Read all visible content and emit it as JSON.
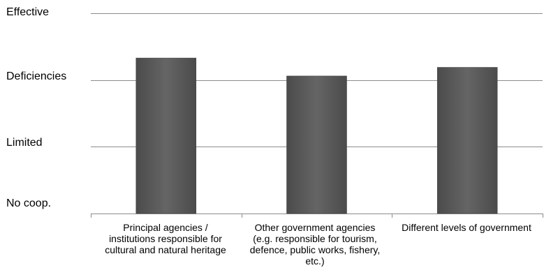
{
  "chart_data": {
    "type": "bar",
    "title": "",
    "xlabel": "",
    "ylabel": "",
    "y_tick_labels": [
      "No coop.",
      "Limited",
      "Deficiencies",
      "Effective"
    ],
    "ylim": [
      0,
      3
    ],
    "grid": true,
    "legend": "none",
    "categories": [
      [
        "Principal agencies /",
        "institutions responsible for",
        "cultural and natural heritage"
      ],
      [
        "Other government agencies",
        "(e.g. responsible for tourism,",
        "defence, public works, fishery,",
        "etc.)"
      ],
      [
        "Different levels of government"
      ]
    ],
    "values": [
      2.33,
      2.06,
      2.19
    ],
    "colors": {
      "bar": "#5a5a5a",
      "bar_edge": "#3e3e3e",
      "grid": "#8c8c8c",
      "axis": "#8c8c8c"
    }
  }
}
